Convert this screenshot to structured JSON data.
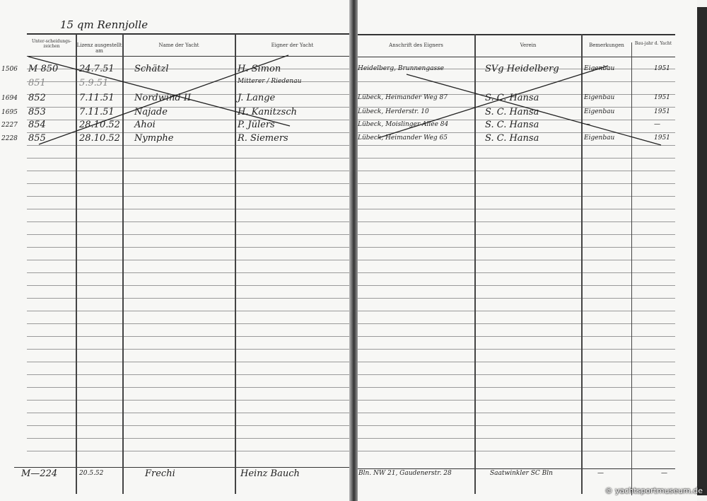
{
  "document": {
    "heading": "15 qm Rennjolle",
    "left_page": {
      "columns": [
        "Unter-scheidungs-zeichen",
        "Lizenz ausgestellt am",
        "Name der Yacht",
        "Eigner der Yacht"
      ],
      "rows": [
        {
          "ref": "1506",
          "mark": "M 850",
          "date": "24.7.51",
          "yacht": "Schätzl",
          "owner": "H. Simon"
        },
        {
          "ref": "",
          "mark": "851",
          "date": "5.9.51",
          "yacht": "",
          "owner": "Mitterer / Riedenau"
        },
        {
          "ref": "1694",
          "mark": "852",
          "date": "7.11.51",
          "yacht": "Nordwind II",
          "owner": "J. Lange"
        },
        {
          "ref": "1695",
          "mark": "853",
          "date": "7.11.51",
          "yacht": "Najade",
          "owner": "H. Kanitzsch"
        },
        {
          "ref": "2227",
          "mark": "854",
          "date": "28.10.52",
          "yacht": "Ahoi",
          "owner": "P. Jülers"
        },
        {
          "ref": "2228",
          "mark": "855",
          "date": "28.10.52",
          "yacht": "Nymphe",
          "owner": "R. Siemers"
        }
      ],
      "footer_row": {
        "mark": "M—224",
        "date": "20.5.52",
        "yacht": "Frechi",
        "owner": "Heinz Bauch"
      }
    },
    "right_page": {
      "columns": [
        "Anschrift des Eigners",
        "Verein",
        "Bemerkungen",
        "Bau-jahr d. Yacht"
      ],
      "rows": [
        {
          "address": "Heidelberg, Brunnengasse",
          "club": "SVg Heidelberg",
          "remark": "Eigenbau",
          "year": "1951"
        },
        {
          "address": "",
          "club": "",
          "remark": "",
          "year": ""
        },
        {
          "address": "Lübeck, Heimander Weg 87",
          "club": "S. C. Hansa",
          "remark": "Eigenbau",
          "year": "1951"
        },
        {
          "address": "Lübeck, Herderstr. 10",
          "club": "S. C. Hansa",
          "remark": "Eigenbau",
          "year": "1951"
        },
        {
          "address": "Lübeck, Moislinger Allee 84",
          "club": "S. C. Hansa",
          "remark": "—",
          "year": "—"
        },
        {
          "address": "Lübeck, Heimander Weg 65",
          "club": "S. C. Hansa",
          "remark": "Eigenbau",
          "year": "1951"
        }
      ],
      "footer_row": {
        "address": "Bln. NW 21, Gaudenerstr. 28",
        "club": "Saatwinkler SC Bln",
        "remark": "—",
        "year": "—"
      }
    },
    "copyright": "© yachtsportmuseum.de"
  }
}
